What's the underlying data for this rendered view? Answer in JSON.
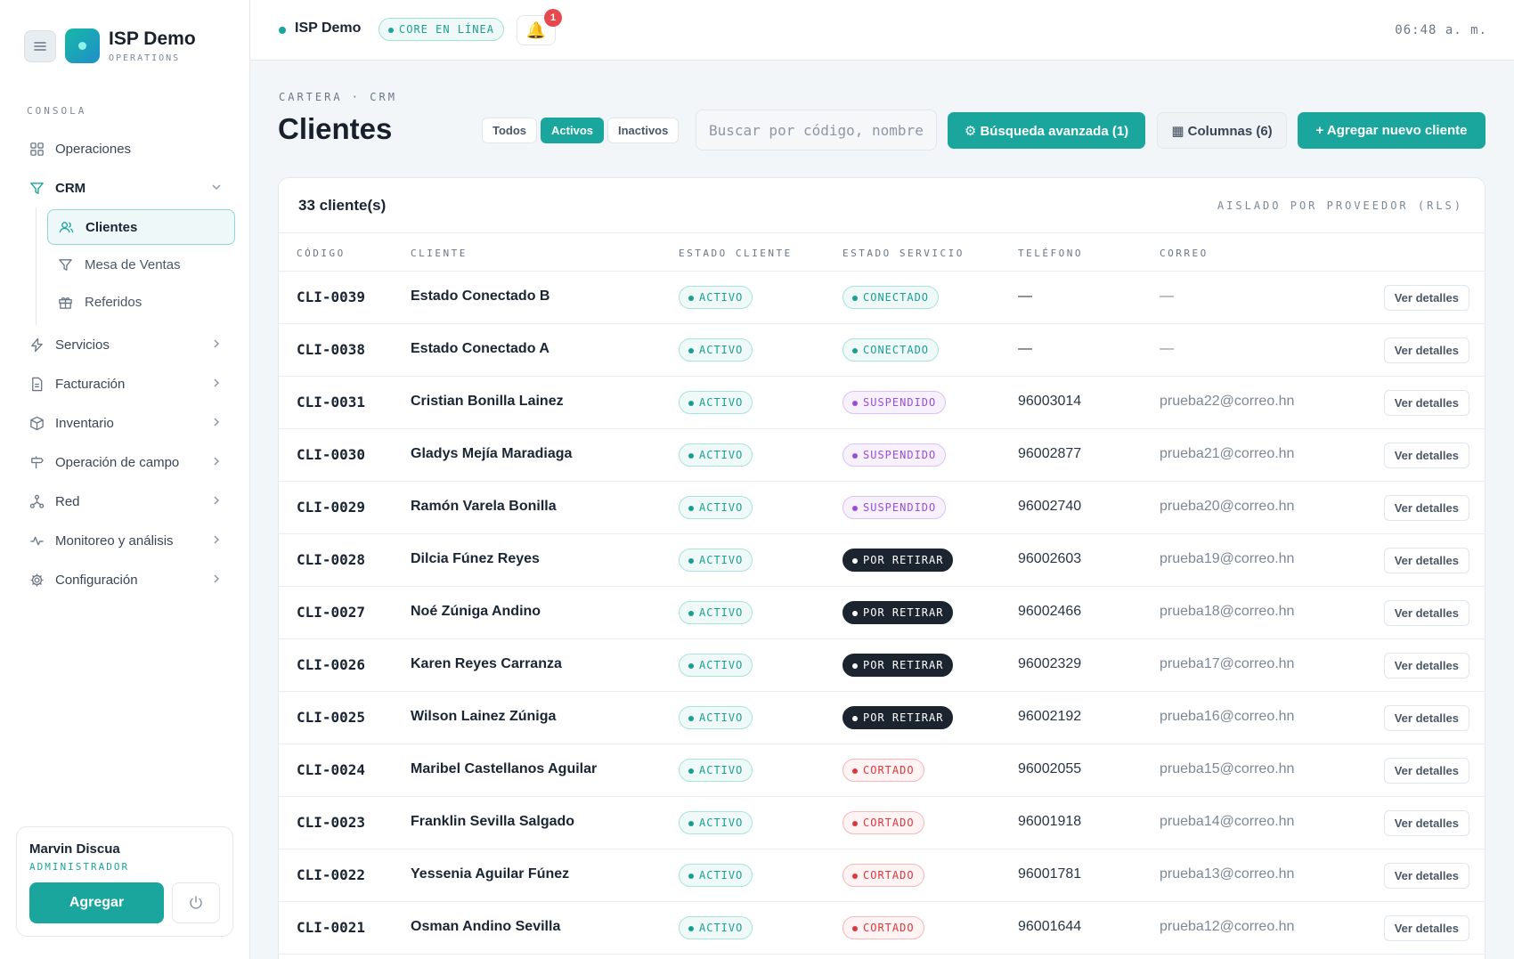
{
  "brand": {
    "title": "ISP Demo",
    "subtitle": "OPERATIONS"
  },
  "sidebar": {
    "section_label": "CONSOLA",
    "items": [
      {
        "label": "Operaciones",
        "icon": "grid-icon"
      },
      {
        "label": "CRM",
        "icon": "filter-icon",
        "expanded": true
      },
      {
        "label": "Servicios",
        "icon": "bolt-icon"
      },
      {
        "label": "Facturación",
        "icon": "document-icon"
      },
      {
        "label": "Inventario",
        "icon": "box-icon"
      },
      {
        "label": "Operación de campo",
        "icon": "sign-icon"
      },
      {
        "label": "Red",
        "icon": "network-icon"
      },
      {
        "label": "Monitoreo y análisis",
        "icon": "activity-icon"
      },
      {
        "label": "Configuración",
        "icon": "gear-icon"
      }
    ],
    "crm_sub": [
      {
        "label": "Clientes",
        "icon": "users-icon",
        "active": true
      },
      {
        "label": "Mesa de Ventas",
        "icon": "filter-icon"
      },
      {
        "label": "Referidos",
        "icon": "gift-icon"
      }
    ]
  },
  "user": {
    "name": "Marvin Discua",
    "role": "ADMINISTRADOR",
    "add_label": "Agregar"
  },
  "topbar": {
    "title": "ISP Demo",
    "status": "CORE EN LÍNEA",
    "notifications": "1",
    "time": "06:48 a. m."
  },
  "page": {
    "breadcrumb": "CARTERA · CRM",
    "title": "Clientes",
    "filters": [
      "Todos",
      "Activos",
      "Inactivos"
    ],
    "active_filter": "Activos",
    "search_placeholder": "Buscar por código, nombre, teléfono…",
    "advanced_search": "⚙ Búsqueda avanzada (1)",
    "columns": "▦ Columnas (6)",
    "add_client": "+ Agregar nuevo cliente"
  },
  "table": {
    "count": "33 cliente(s)",
    "isolation": "AISLADO POR PROVEEDOR (RLS)",
    "headers": [
      "CÓDIGO",
      "CLIENTE",
      "ESTADO CLIENTE",
      "ESTADO SERVICIO",
      "TELÉFONO",
      "CORREO"
    ],
    "details_label": "Ver detalles",
    "rows": [
      {
        "code": "CLI-0039",
        "name": "Estado Conectado B",
        "client_status": "ACTIVO",
        "service_status": "CONECTADO",
        "phone": "—",
        "email": "—"
      },
      {
        "code": "CLI-0038",
        "name": "Estado Conectado A",
        "client_status": "ACTIVO",
        "service_status": "CONECTADO",
        "phone": "—",
        "email": "—"
      },
      {
        "code": "CLI-0031",
        "name": "Cristian Bonilla Lainez",
        "client_status": "ACTIVO",
        "service_status": "SUSPENDIDO",
        "phone": "96003014",
        "email": "prueba22@correo.hn"
      },
      {
        "code": "CLI-0030",
        "name": "Gladys Mejía Maradiaga",
        "client_status": "ACTIVO",
        "service_status": "SUSPENDIDO",
        "phone": "96002877",
        "email": "prueba21@correo.hn"
      },
      {
        "code": "CLI-0029",
        "name": "Ramón Varela Bonilla",
        "client_status": "ACTIVO",
        "service_status": "SUSPENDIDO",
        "phone": "96002740",
        "email": "prueba20@correo.hn"
      },
      {
        "code": "CLI-0028",
        "name": "Dilcia Fúnez Reyes",
        "client_status": "ACTIVO",
        "service_status": "POR RETIRAR",
        "phone": "96002603",
        "email": "prueba19@correo.hn"
      },
      {
        "code": "CLI-0027",
        "name": "Noé Zúniga Andino",
        "client_status": "ACTIVO",
        "service_status": "POR RETIRAR",
        "phone": "96002466",
        "email": "prueba18@correo.hn"
      },
      {
        "code": "CLI-0026",
        "name": "Karen Reyes Carranza",
        "client_status": "ACTIVO",
        "service_status": "POR RETIRAR",
        "phone": "96002329",
        "email": "prueba17@correo.hn"
      },
      {
        "code": "CLI-0025",
        "name": "Wilson Lainez Zúniga",
        "client_status": "ACTIVO",
        "service_status": "POR RETIRAR",
        "phone": "96002192",
        "email": "prueba16@correo.hn"
      },
      {
        "code": "CLI-0024",
        "name": "Maribel Castellanos Aguilar",
        "client_status": "ACTIVO",
        "service_status": "CORTADO",
        "phone": "96002055",
        "email": "prueba15@correo.hn"
      },
      {
        "code": "CLI-0023",
        "name": "Franklin Sevilla Salgado",
        "client_status": "ACTIVO",
        "service_status": "CORTADO",
        "phone": "96001918",
        "email": "prueba14@correo.hn"
      },
      {
        "code": "CLI-0022",
        "name": "Yessenia Aguilar Fúnez",
        "client_status": "ACTIVO",
        "service_status": "CORTADO",
        "phone": "96001781",
        "email": "prueba13@correo.hn"
      },
      {
        "code": "CLI-0021",
        "name": "Osman Andino Sevilla",
        "client_status": "ACTIVO",
        "service_status": "CORTADO",
        "phone": "96001644",
        "email": "prueba12@correo.hn"
      }
    ]
  }
}
